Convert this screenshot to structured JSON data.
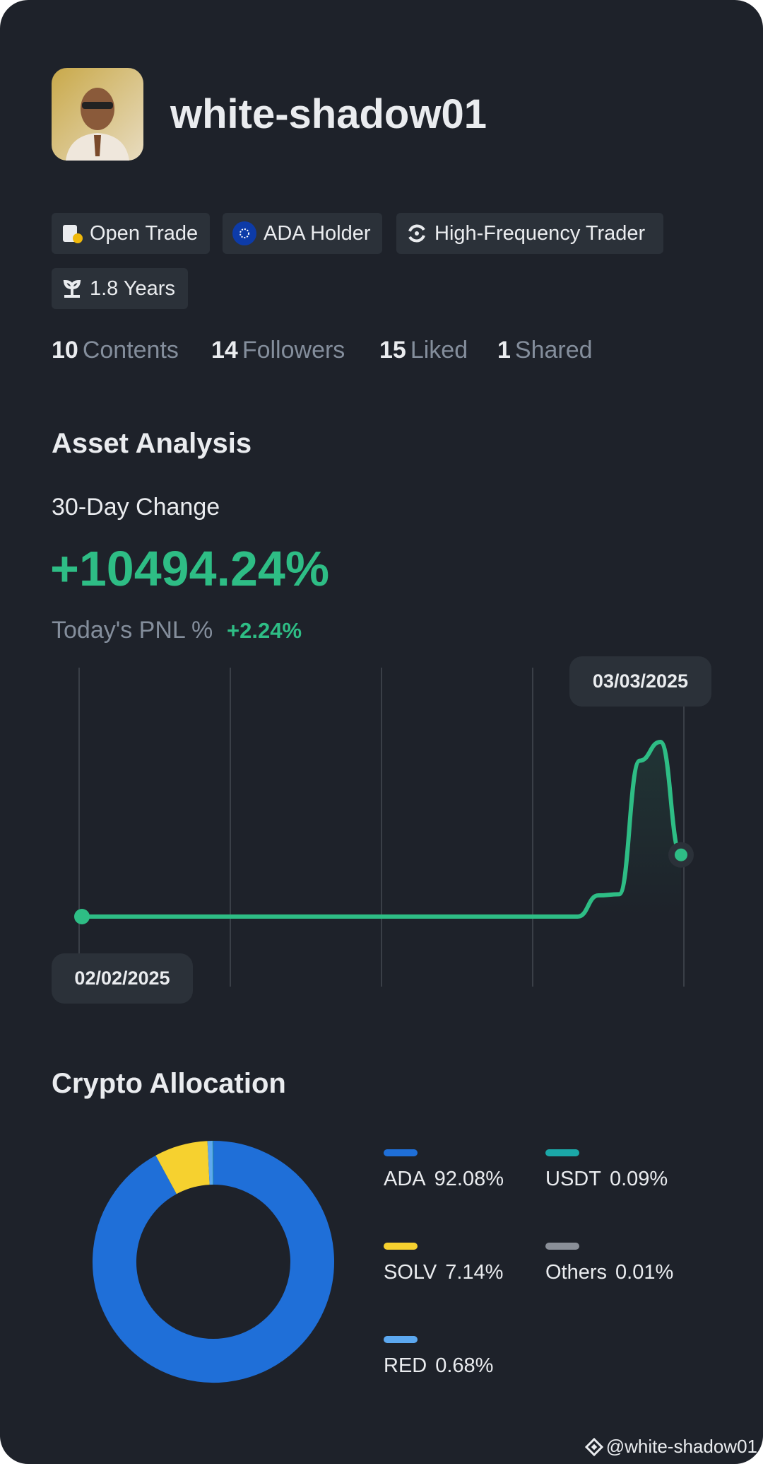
{
  "profile": {
    "username": "white-shadow01"
  },
  "badges": [
    "Open Trade",
    "ADA Holder",
    "High-Frequency Trader",
    "1.8 Years"
  ],
  "stats": [
    {
      "value": 10,
      "label": "Contents"
    },
    {
      "value": 14,
      "label": "Followers"
    },
    {
      "value": 15,
      "label": "Liked"
    },
    {
      "value": 1,
      "label": "Shared"
    }
  ],
  "asset_analysis": {
    "title": "Asset Analysis",
    "change_label": "30-Day Change",
    "change": "+10494.24%",
    "pnl_label": "Today's PNL %",
    "pnl": "+2.24%",
    "chart": {
      "type": "line",
      "color": "#2ebd85",
      "x": [
        "02/02/2025",
        null,
        null,
        null,
        null,
        null,
        null,
        null,
        null,
        null,
        null,
        null,
        null,
        null,
        null,
        null,
        null,
        null,
        null,
        null,
        null,
        null,
        null,
        null,
        null,
        null,
        null,
        null,
        null,
        "03/03/2025"
      ],
      "values": [
        0,
        0,
        0,
        0,
        0,
        0,
        0,
        0,
        0,
        0,
        0,
        0,
        0,
        0,
        0,
        0,
        0,
        0,
        0,
        0,
        0,
        0,
        0,
        0,
        0,
        3600,
        3800,
        26500,
        29700,
        10494.24
      ]
    }
  },
  "allocation": {
    "title": "Crypto Allocation",
    "chart": {
      "type": "pie",
      "series": [
        {
          "name": "ADA",
          "value": 92.08,
          "label": "92.08%",
          "color": "#1f6fd8"
        },
        {
          "name": "SOLV",
          "value": 7.14,
          "label": "7.14%",
          "color": "#f6d12f"
        },
        {
          "name": "RED",
          "value": 0.68,
          "label": "0.68%",
          "color": "#5ca8f0"
        },
        {
          "name": "USDT",
          "value": 0.09,
          "label": "0.09%",
          "color": "#1ba8a8"
        },
        {
          "name": "Others",
          "value": 0.01,
          "label": "0.01%",
          "color": "#8a8f98"
        }
      ]
    }
  },
  "watermark": "@white-shadow01"
}
